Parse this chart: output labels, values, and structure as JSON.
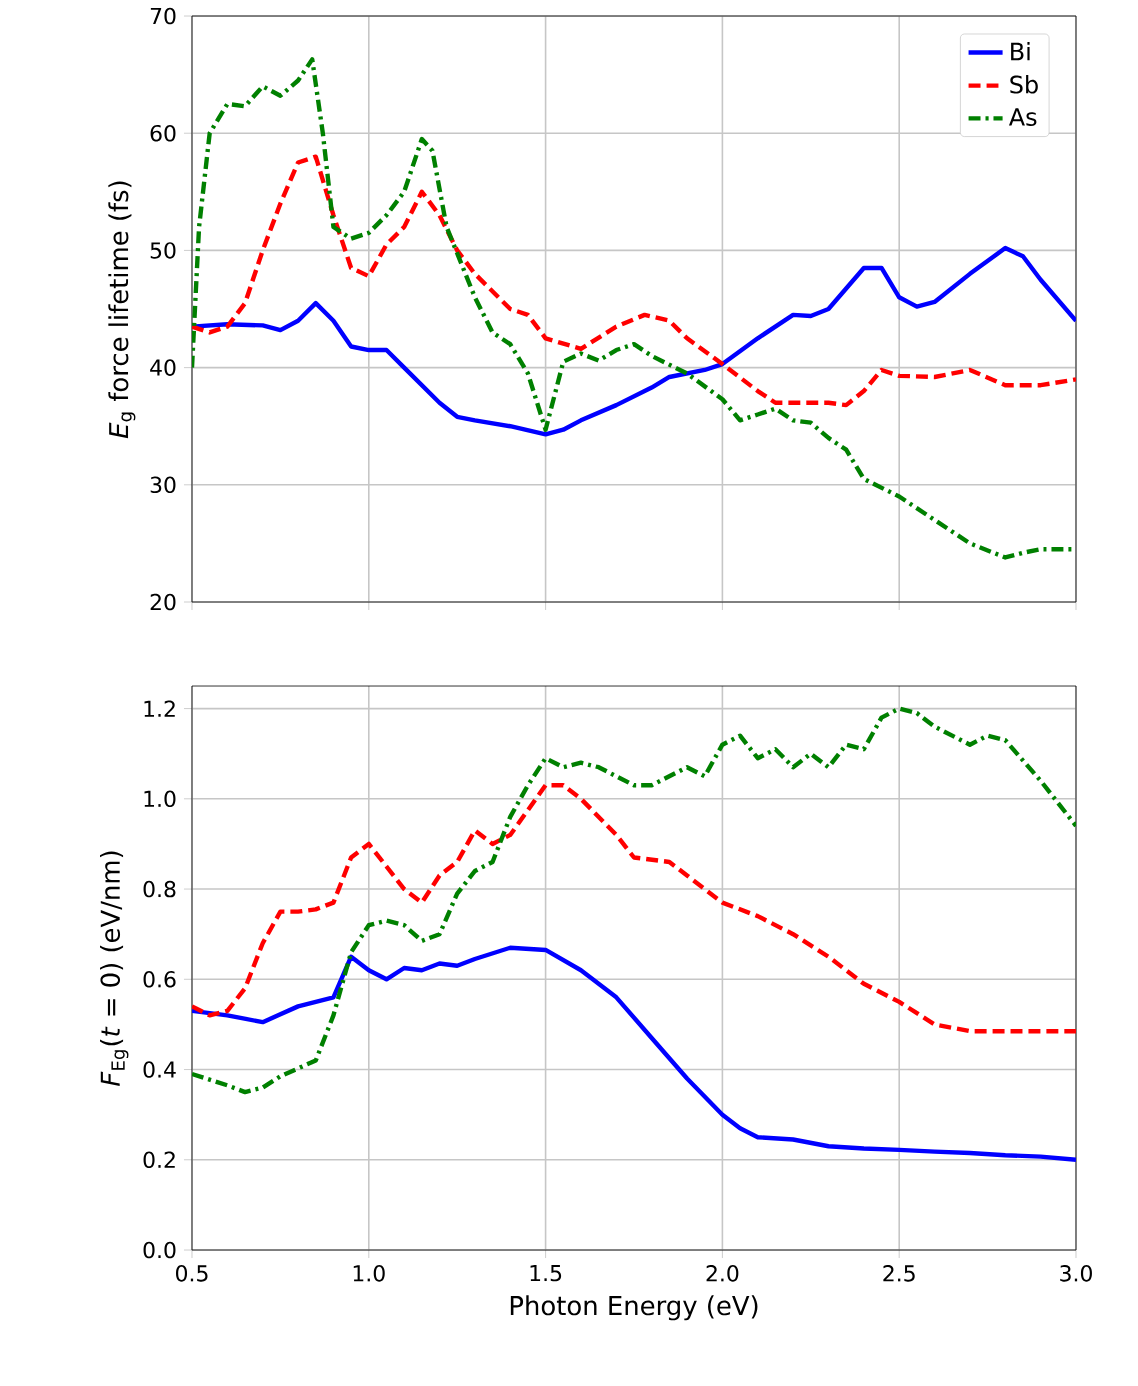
{
  "chart_data": [
    {
      "type": "line",
      "ylabel": "*E*$_{g}$ force lifetime (fs)",
      "xlim": [
        0.5,
        3.0
      ],
      "xticks": [
        0.5,
        1.0,
        1.5,
        2.0,
        2.5,
        3.0
      ],
      "ylim": [
        20,
        70
      ],
      "yticks": [
        20,
        30,
        40,
        50,
        60,
        70
      ],
      "grid": true,
      "legend": "top right",
      "tick_labels": "y",
      "series": [
        {
          "name": "Bi",
          "color": "#0000ff",
          "line_style": "solid",
          "x": [
            0.5,
            0.6,
            0.7,
            0.75,
            0.8,
            0.85,
            0.9,
            0.95,
            1.0,
            1.05,
            1.1,
            1.2,
            1.25,
            1.3,
            1.4,
            1.5,
            1.55,
            1.6,
            1.7,
            1.8,
            1.85,
            1.95,
            2.0,
            2.1,
            2.2,
            2.25,
            2.3,
            2.4,
            2.45,
            2.5,
            2.55,
            2.6,
            2.7,
            2.8,
            2.85,
            2.9,
            3.0
          ],
          "values": [
            43.5,
            43.7,
            43.6,
            43.2,
            44,
            45.5,
            44,
            41.8,
            41.5,
            41.5,
            40,
            37,
            35.8,
            35.5,
            35,
            34.3,
            34.7,
            35.5,
            36.8,
            38.3,
            39.2,
            39.8,
            40.3,
            42.5,
            44.5,
            44.4,
            45,
            48.5,
            48.5,
            46,
            45.2,
            45.6,
            48,
            50.2,
            49.5,
            47.5,
            44
          ]
        },
        {
          "name": "Sb",
          "color": "#ff0000",
          "line_style": "dashed",
          "x": [
            0.5,
            0.55,
            0.6,
            0.65,
            0.7,
            0.75,
            0.8,
            0.85,
            0.9,
            0.95,
            1.0,
            1.05,
            1.1,
            1.15,
            1.2,
            1.25,
            1.3,
            1.4,
            1.45,
            1.5,
            1.6,
            1.7,
            1.78,
            1.85,
            1.9,
            2.0,
            2.1,
            2.15,
            2.2,
            2.3,
            2.35,
            2.4,
            2.45,
            2.5,
            2.6,
            2.7,
            2.8,
            2.9,
            3.0
          ],
          "values": [
            43.5,
            43,
            43.5,
            45.5,
            50,
            54,
            57.5,
            58,
            53,
            48.5,
            47.8,
            50.5,
            52,
            55,
            53,
            50,
            48,
            45,
            44.5,
            42.5,
            41.6,
            43.5,
            44.5,
            44,
            42.5,
            40.3,
            38,
            37,
            37,
            37,
            36.8,
            38,
            39.8,
            39.3,
            39.2,
            39.8,
            38.5,
            38.5,
            39
          ]
        },
        {
          "name": "As",
          "color": "#008000",
          "line_style": "dashdot",
          "x": [
            0.5,
            0.52,
            0.55,
            0.6,
            0.65,
            0.7,
            0.75,
            0.8,
            0.84,
            0.87,
            0.9,
            0.95,
            1.0,
            1.05,
            1.1,
            1.15,
            1.18,
            1.22,
            1.3,
            1.35,
            1.4,
            1.45,
            1.5,
            1.55,
            1.6,
            1.65,
            1.7,
            1.75,
            1.8,
            1.9,
            2.0,
            2.05,
            2.1,
            2.15,
            2.2,
            2.25,
            2.3,
            2.35,
            2.4,
            2.5,
            2.6,
            2.7,
            2.8,
            2.85,
            2.9,
            3.0
          ],
          "values": [
            40,
            52,
            60,
            62.5,
            62.3,
            64,
            63.2,
            64.5,
            66.3,
            60,
            52,
            51,
            51.5,
            53,
            55,
            59.5,
            58.5,
            52,
            46,
            43,
            42,
            39.5,
            34.7,
            40.5,
            41.2,
            40.6,
            41.5,
            42,
            41,
            39.5,
            37.3,
            35.5,
            36,
            36.5,
            35.5,
            35.3,
            34,
            33,
            30.5,
            29,
            27,
            25,
            23.8,
            24.2,
            24.5,
            24.5
          ]
        }
      ]
    },
    {
      "type": "line",
      "xlabel": "Photon Energy (eV)",
      "ylabel": "*F*$_{Eg}$(*t* = 0) (eV/nm)",
      "xlim": [
        0.5,
        3.0
      ],
      "xticks": [
        0.5,
        {
          "value": 1,
          "label": "1.0"
        },
        1.5,
        {
          "value": 2,
          "label": "2.0"
        },
        2.5,
        {
          "value": 3,
          "label": "3.0"
        }
      ],
      "ylim": [
        0.0,
        1.25
      ],
      "yticks": [
        {
          "value": 0,
          "label": "0.0"
        },
        0.2,
        0.4,
        0.6,
        0.8,
        {
          "value": 1,
          "label": "1.0"
        },
        1.2
      ],
      "grid": true,
      "series": [
        {
          "color": "#0000ff",
          "line_style": "solid",
          "x": [
            0.5,
            0.6,
            0.7,
            0.8,
            0.85,
            0.9,
            0.95,
            1.0,
            1.05,
            1.1,
            1.15,
            1.2,
            1.25,
            1.3,
            1.4,
            1.5,
            1.6,
            1.7,
            1.8,
            1.9,
            2.0,
            2.05,
            2.1,
            2.2,
            2.3,
            2.4,
            2.5,
            2.6,
            2.7,
            2.8,
            2.9,
            3.0
          ],
          "values": [
            0.53,
            0.52,
            0.505,
            0.54,
            0.55,
            0.56,
            0.65,
            0.62,
            0.6,
            0.625,
            0.62,
            0.635,
            0.63,
            0.645,
            0.67,
            0.665,
            0.62,
            0.56,
            0.47,
            0.38,
            0.3,
            0.27,
            0.25,
            0.245,
            0.23,
            0.225,
            0.222,
            0.218,
            0.215,
            0.21,
            0.207,
            0.2
          ]
        },
        {
          "color": "#ff0000",
          "line_style": "dashed",
          "x": [
            0.5,
            0.55,
            0.6,
            0.65,
            0.7,
            0.75,
            0.8,
            0.85,
            0.9,
            0.95,
            1.0,
            1.05,
            1.1,
            1.15,
            1.2,
            1.25,
            1.3,
            1.35,
            1.4,
            1.5,
            1.55,
            1.6,
            1.7,
            1.75,
            1.85,
            1.9,
            2.0,
            2.1,
            2.2,
            2.3,
            2.4,
            2.5,
            2.6,
            2.7,
            2.8,
            2.9,
            3.0
          ],
          "values": [
            0.54,
            0.52,
            0.53,
            0.58,
            0.68,
            0.75,
            0.75,
            0.755,
            0.77,
            0.87,
            0.9,
            0.85,
            0.8,
            0.77,
            0.83,
            0.86,
            0.93,
            0.9,
            0.92,
            1.03,
            1.03,
            1.0,
            0.92,
            0.87,
            0.86,
            0.83,
            0.77,
            0.74,
            0.7,
            0.65,
            0.59,
            0.55,
            0.5,
            0.485,
            0.485,
            0.485,
            0.485
          ]
        },
        {
          "color": "#008000",
          "line_style": "dashdot",
          "x": [
            0.5,
            0.6,
            0.65,
            0.7,
            0.75,
            0.85,
            0.9,
            0.95,
            1.0,
            1.05,
            1.1,
            1.15,
            1.2,
            1.25,
            1.3,
            1.35,
            1.4,
            1.45,
            1.5,
            1.55,
            1.6,
            1.65,
            1.7,
            1.75,
            1.8,
            1.85,
            1.9,
            1.95,
            2.0,
            2.05,
            2.1,
            2.15,
            2.2,
            2.25,
            2.3,
            2.35,
            2.4,
            2.45,
            2.5,
            2.55,
            2.6,
            2.65,
            2.7,
            2.75,
            2.8,
            2.9,
            3.0
          ],
          "values": [
            0.39,
            0.365,
            0.35,
            0.36,
            0.385,
            0.42,
            0.52,
            0.66,
            0.72,
            0.73,
            0.72,
            0.685,
            0.7,
            0.79,
            0.84,
            0.86,
            0.96,
            1.03,
            1.09,
            1.07,
            1.08,
            1.07,
            1.05,
            1.03,
            1.03,
            1.05,
            1.07,
            1.05,
            1.12,
            1.14,
            1.09,
            1.11,
            1.07,
            1.1,
            1.07,
            1.12,
            1.11,
            1.18,
            1.2,
            1.19,
            1.16,
            1.14,
            1.12,
            1.14,
            1.13,
            1.04,
            0.94
          ]
        }
      ]
    }
  ]
}
